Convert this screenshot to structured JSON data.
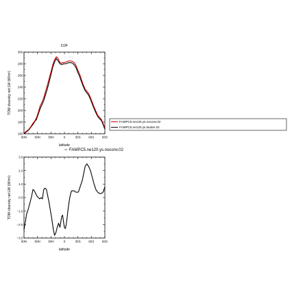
{
  "chart_data": [
    {
      "type": "line",
      "title": "DJF",
      "xlabel": "latitude",
      "ylabel": "TOM clearsky net LW (W/m²)",
      "xlim": [
        -90,
        90
      ],
      "ylim": [
        160,
        300
      ],
      "x_ticks": [
        {
          "value": -90,
          "label": "90N"
        },
        {
          "value": -60,
          "label": "60N"
        },
        {
          "value": -30,
          "label": "30N"
        },
        {
          "value": 0,
          "label": "0"
        },
        {
          "value": 30,
          "label": "30S"
        },
        {
          "value": 60,
          "label": "60S"
        },
        {
          "value": 90,
          "label": "90S"
        }
      ],
      "y_ticks": [
        160,
        180,
        200,
        220,
        240,
        260,
        280,
        300
      ],
      "grid": false,
      "legend": {
        "placement": "right",
        "entries": [
          {
            "label": "FAMPC5.ne120.ys.noconv.02",
            "color": "#cc0000"
          },
          {
            "label": "FAMPC5.ne120.ys.tau5m.02",
            "color": "#000000"
          }
        ]
      },
      "series": [
        {
          "name": "FAMPC5.ne120.ys.noconv.02",
          "color": "#cc0000",
          "x": [
            -90,
            -85,
            -80,
            -75,
            -70,
            -66,
            -62,
            -58,
            -54,
            -50,
            -46,
            -42,
            -38,
            -34,
            -30,
            -26,
            -22,
            -18,
            -14,
            -10,
            -7,
            -4,
            -2,
            0,
            3,
            6,
            10,
            14,
            18,
            22,
            26,
            30,
            34,
            38,
            42,
            46,
            50,
            54,
            58,
            62,
            66,
            70,
            74,
            78,
            82,
            86,
            90
          ],
          "y": [
            161,
            164,
            167,
            172,
            178,
            182,
            188,
            197,
            208,
            214,
            222,
            233,
            243,
            255,
            266,
            278,
            287,
            292,
            289,
            282,
            281,
            282,
            282,
            282,
            283,
            284,
            285,
            285,
            284,
            282,
            277,
            269,
            262,
            253,
            244,
            237,
            233,
            229,
            222,
            214,
            206,
            199,
            192,
            188,
            185,
            178,
            170
          ]
        },
        {
          "name": "FAMPC5.ne120.ys.tau5m.02",
          "color": "#000000",
          "x": [
            -90,
            -85,
            -80,
            -75,
            -70,
            -66,
            -62,
            -58,
            -54,
            -50,
            -46,
            -42,
            -38,
            -34,
            -30,
            -26,
            -22,
            -18,
            -14,
            -10,
            -7,
            -4,
            -2,
            0,
            3,
            6,
            10,
            14,
            18,
            22,
            26,
            30,
            34,
            38,
            42,
            46,
            50,
            54,
            58,
            62,
            66,
            70,
            74,
            78,
            82,
            86,
            90
          ],
          "y": [
            160,
            163,
            166,
            171,
            176,
            181,
            185,
            194,
            203,
            210,
            217,
            227,
            237,
            249,
            261,
            274,
            283,
            289,
            285,
            280,
            279,
            279,
            280,
            280,
            280,
            281,
            282,
            282,
            281,
            278,
            273,
            265,
            258,
            249,
            241,
            234,
            230,
            226,
            219,
            211,
            203,
            196,
            190,
            186,
            183,
            176,
            168
          ]
        }
      ]
    },
    {
      "type": "line",
      "title": "",
      "xlabel": "latitude",
      "ylabel": "TOM clearsky net LW (W/m²)",
      "xlim": [
        -90,
        90
      ],
      "ylim": [
        -3,
        3
      ],
      "x_ticks": [
        {
          "value": -90,
          "label": "90N"
        },
        {
          "value": -60,
          "label": "60N"
        },
        {
          "value": -30,
          "label": "30N"
        },
        {
          "value": 0,
          "label": "0"
        },
        {
          "value": 30,
          "label": "30S"
        },
        {
          "value": 60,
          "label": "60S"
        },
        {
          "value": 90,
          "label": "90S"
        }
      ],
      "y_ticks": [
        {
          "value": -3,
          "label": "−3.0"
        },
        {
          "value": -2,
          "label": "−2.0"
        },
        {
          "value": -1,
          "label": "−1.0"
        },
        {
          "value": 0,
          "label": "0.0"
        },
        {
          "value": 1,
          "label": "1.0"
        },
        {
          "value": 2,
          "label": "2.0"
        },
        {
          "value": 3,
          "label": "3.0"
        }
      ],
      "grid": false,
      "legend": {
        "placement": "top-right",
        "entries": [
          {
            "label": "FAMPC5.ne120.ys.noconv.02",
            "color": "#000000"
          }
        ]
      },
      "series": [
        {
          "name": "FAMPC5.ne120.ys.noconv.02",
          "color": "#000000",
          "x": [
            -90,
            -87,
            -84,
            -80,
            -76,
            -73,
            -70,
            -67,
            -64,
            -61,
            -58,
            -55,
            -52,
            -49,
            -46,
            -43,
            -40,
            -37,
            -34,
            -31,
            -28,
            -25,
            -22,
            -19,
            -16,
            -13,
            -10,
            -8,
            -6,
            -4,
            -2,
            0,
            2,
            4,
            6,
            8,
            10,
            12,
            14,
            16,
            18,
            20,
            22,
            25,
            28,
            31,
            34,
            37,
            40,
            43,
            46,
            50,
            54,
            58,
            62,
            66,
            70,
            74,
            78,
            82,
            86,
            88,
            90
          ],
          "y": [
            -2.4,
            -1.8,
            -1.2,
            -0.8,
            -0.3,
            0.1,
            0.6,
            0.5,
            0.3,
            0.1,
            0.0,
            -0.1,
            0.0,
            -0.1,
            0.6,
            0.7,
            0.6,
            0.1,
            -0.4,
            -1.0,
            -1.6,
            -2.3,
            -2.8,
            -2.6,
            -2.2,
            -1.9,
            -2.2,
            -1.8,
            -1.4,
            -1.3,
            -1.8,
            -2.2,
            -2.3,
            -2.0,
            -1.5,
            -0.9,
            -0.4,
            0.0,
            0.3,
            0.5,
            0.5,
            0.5,
            0.5,
            0.4,
            0.4,
            0.4,
            0.7,
            1.0,
            1.3,
            1.8,
            2.3,
            2.5,
            2.3,
            2.0,
            1.5,
            1.0,
            0.6,
            0.4,
            0.3,
            0.3,
            0.4,
            0.6,
            0.8
          ]
        }
      ]
    }
  ]
}
